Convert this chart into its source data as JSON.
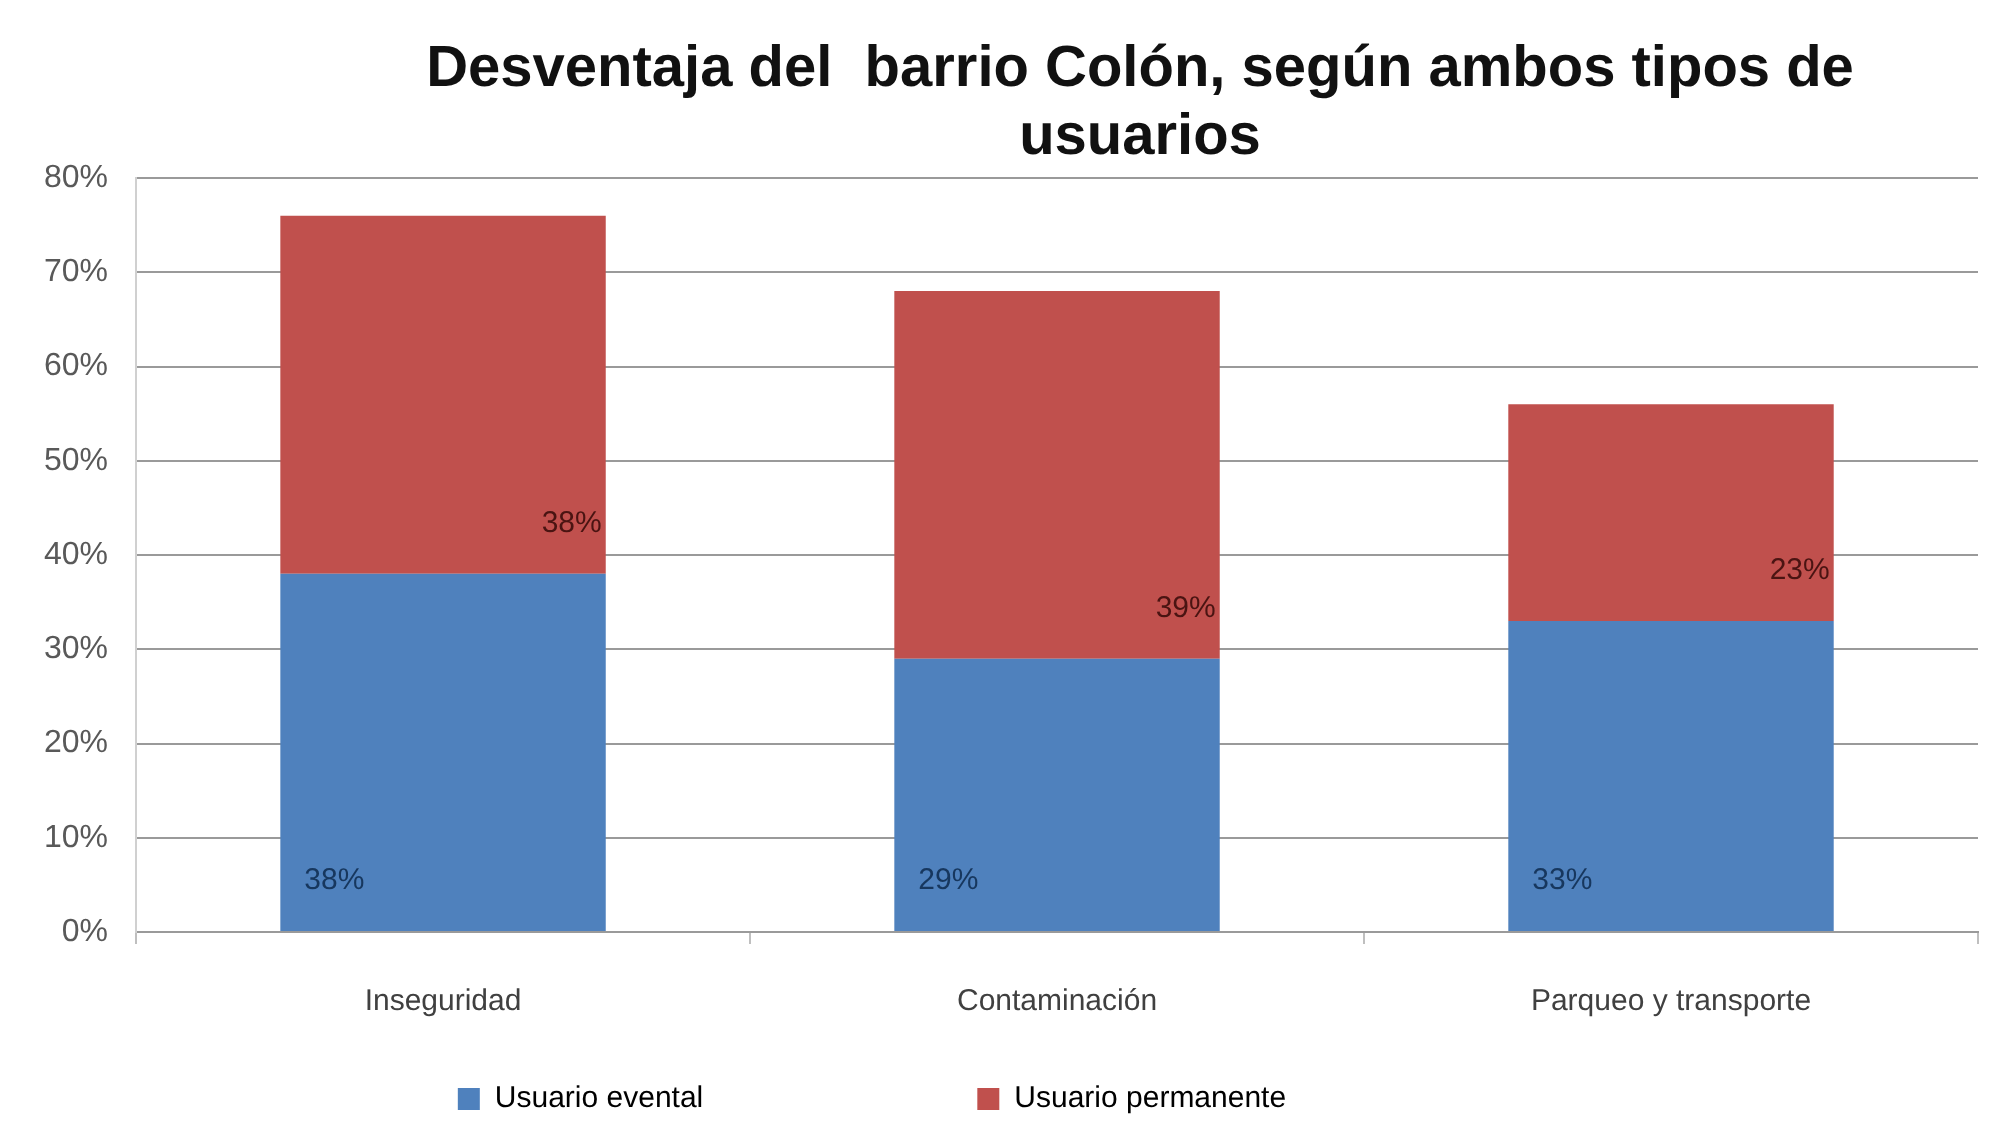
{
  "chart_data": {
    "type": "bar",
    "title": "Desventaja del  barrio Colón, según ambos tipos de usuarios",
    "categories": [
      "Inseguridad",
      "Contaminación",
      "Parqueo y transporte"
    ],
    "stacked": true,
    "series": [
      {
        "name": "Usuario evental",
        "color": "#4f81bd",
        "values": [
          38,
          29,
          33
        ],
        "value_labels": [
          "38%",
          "29%",
          "33%"
        ]
      },
      {
        "name": "Usuario permanente",
        "color": "#c0504d",
        "values": [
          38,
          39,
          23
        ],
        "value_labels": [
          "38%",
          "39%",
          "23%"
        ]
      }
    ],
    "ylim": [
      0,
      80
    ],
    "yticks": [
      {
        "value": 0,
        "label": "0%"
      },
      {
        "value": 10,
        "label": "10%"
      },
      {
        "value": 20,
        "label": "20%"
      },
      {
        "value": 30,
        "label": "30%"
      },
      {
        "value": 40,
        "label": "40%"
      },
      {
        "value": 50,
        "label": "50%"
      },
      {
        "value": 60,
        "label": "60%"
      },
      {
        "value": 70,
        "label": "70%"
      },
      {
        "value": 80,
        "label": "80%"
      }
    ],
    "grid": "y",
    "legend": "bottom"
  }
}
